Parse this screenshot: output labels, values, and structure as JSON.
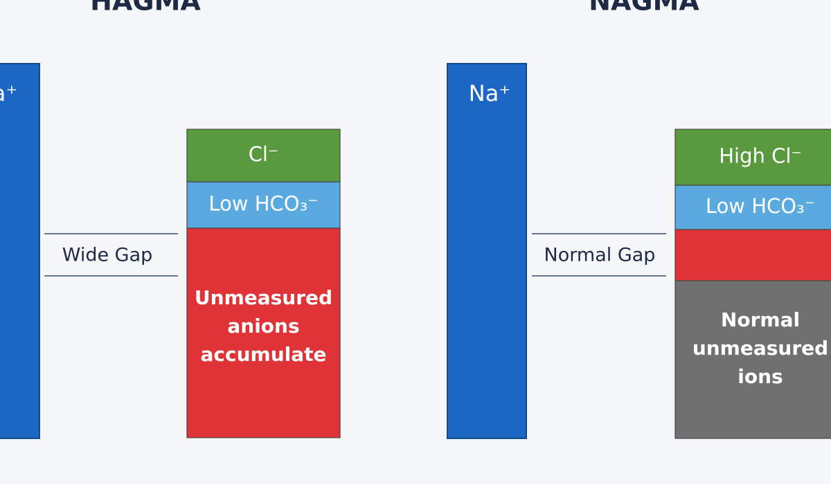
{
  "panels": [
    {
      "title": "HAGMA",
      "cation": "Na⁺",
      "gap_label": "Wide Gap",
      "stack": [
        {
          "lines": [
            "Cl⁻"
          ]
        },
        {
          "lines": [
            "Low HCO₃⁻"
          ]
        },
        {
          "lines": [
            "Unmeasured",
            "anions",
            "accumulate"
          ]
        }
      ]
    },
    {
      "title": "NAGMA",
      "cation": "Na⁺",
      "gap_label": "Normal Gap",
      "stack": [
        {
          "lines": [
            "High Cl⁻"
          ]
        },
        {
          "lines": [
            "Low HCO₃⁻"
          ]
        },
        {
          "lines": []
        },
        {
          "lines": [
            "Normal",
            "unmeasured",
            "ions"
          ]
        }
      ]
    }
  ]
}
